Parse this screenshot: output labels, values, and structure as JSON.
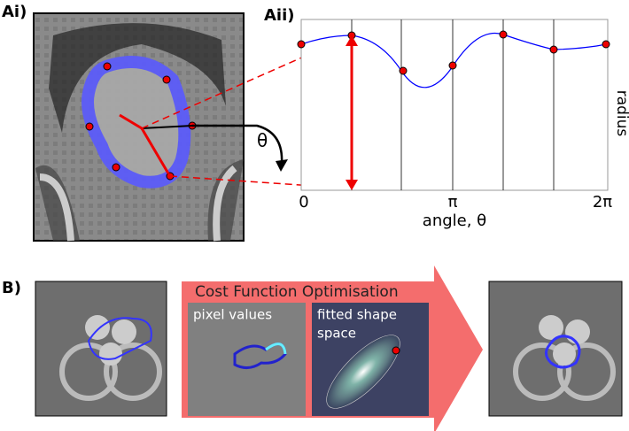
{
  "panels": {
    "ai": {
      "label": "Ai)"
    },
    "aii": {
      "label": "Aii)",
      "xtick_labels": [
        "0",
        "π",
        "2π"
      ],
      "xlabel": "angle, θ",
      "ylabel": "radius",
      "angle_symbol": "θ"
    },
    "b": {
      "label": "B)",
      "banner": "Cost Function Optimisation",
      "inset_left": "pixel values",
      "inset_right_line1": "fitted shape",
      "inset_right_line2": "space"
    }
  }
}
